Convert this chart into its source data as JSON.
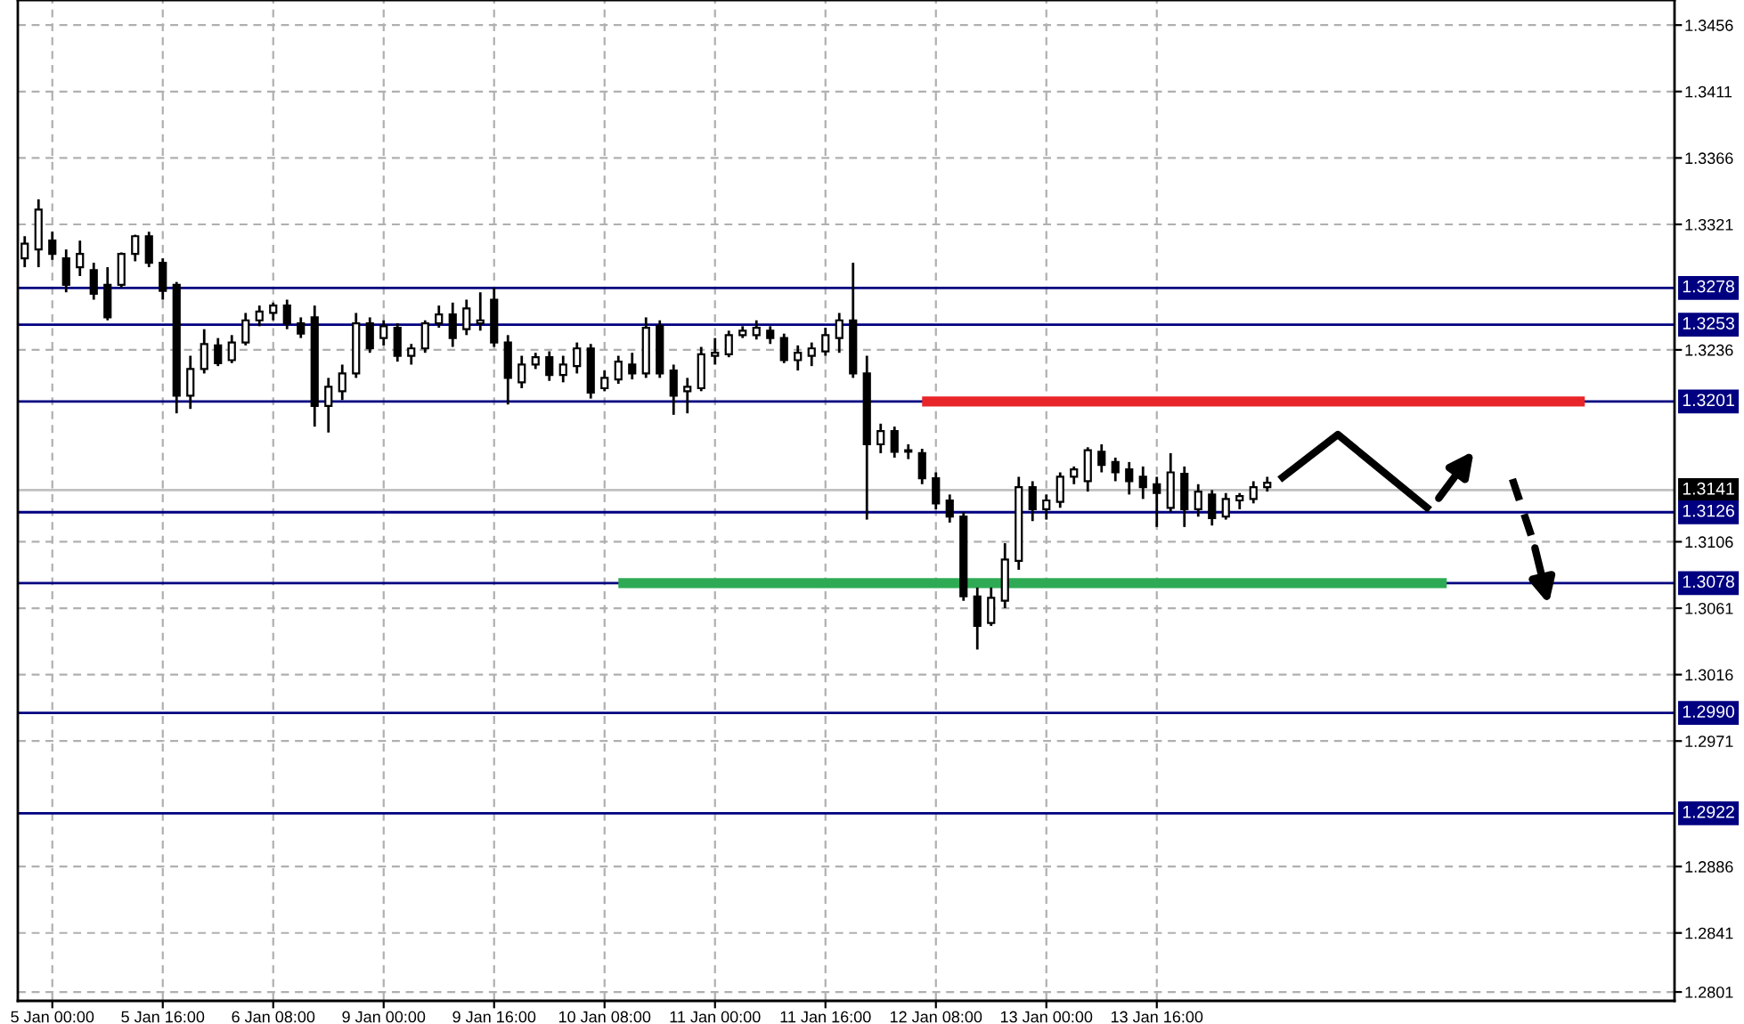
{
  "chart_data": {
    "type": "candlestick",
    "categories": [
      null,
      null,
      "5 Jan 00:00",
      null,
      null,
      null,
      null,
      null,
      null,
      null,
      "5 Jan 16:00",
      null,
      null,
      null,
      null,
      null,
      null,
      null,
      "6 Jan 08:00",
      null,
      null,
      null,
      null,
      null,
      null,
      null,
      "9 Jan 00:00",
      null,
      null,
      null,
      null,
      null,
      null,
      null,
      "9 Jan 16:00",
      null,
      null,
      null,
      null,
      null,
      null,
      null,
      "10 Jan 08:00",
      null,
      null,
      null,
      null,
      null,
      null,
      null,
      "11 Jan 00:00",
      null,
      null,
      null,
      null,
      null,
      null,
      null,
      "11 Jan 16:00",
      null,
      null,
      null,
      null,
      null,
      null,
      null,
      "12 Jan 08:00",
      null,
      null,
      null,
      null,
      null,
      null,
      null,
      "13 Jan 00:00",
      null,
      null,
      null,
      null,
      null,
      null,
      null,
      "13 Jan 16:00",
      null,
      null,
      null,
      null,
      null,
      null,
      null,
      null,
      null,
      null,
      null,
      null,
      null,
      null,
      null,
      null,
      null,
      null,
      null,
      null,
      null,
      null,
      null,
      null,
      null,
      null,
      null,
      null,
      null,
      null,
      null,
      null,
      null,
      null,
      null,
      null,
      null
    ],
    "ohlc": [
      [
        1.3298,
        1.3313,
        1.3292,
        1.3308
      ],
      [
        1.3304,
        1.3338,
        1.3292,
        1.3331
      ],
      [
        1.331,
        1.3316,
        1.3297,
        1.3301
      ],
      [
        1.3298,
        1.3304,
        1.3275,
        1.328
      ],
      [
        1.3292,
        1.331,
        1.3286,
        1.3301
      ],
      [
        1.329,
        1.3295,
        1.327,
        1.3274
      ],
      [
        1.328,
        1.3292,
        1.3256,
        1.3258
      ],
      [
        1.328,
        1.3302,
        1.3278,
        1.3301
      ],
      [
        1.3301,
        1.3314,
        1.3296,
        1.3313
      ],
      [
        1.3313,
        1.3316,
        1.3292,
        1.3295
      ],
      [
        1.3295,
        1.3298,
        1.327,
        1.3276
      ],
      [
        1.328,
        1.3282,
        1.3193,
        1.3205
      ],
      [
        1.3205,
        1.3232,
        1.3196,
        1.3223
      ],
      [
        1.3223,
        1.325,
        1.322,
        1.324
      ],
      [
        1.3239,
        1.3244,
        1.3225,
        1.3227
      ],
      [
        1.3229,
        1.3246,
        1.3227,
        1.3241
      ],
      [
        1.3241,
        1.3261,
        1.3239,
        1.3256
      ],
      [
        1.3256,
        1.3266,
        1.3252,
        1.3262
      ],
      [
        1.3261,
        1.3268,
        1.3256,
        1.3266
      ],
      [
        1.3266,
        1.327,
        1.325,
        1.3254
      ],
      [
        1.3254,
        1.3258,
        1.3244,
        1.3247
      ],
      [
        1.3258,
        1.3266,
        1.3184,
        1.3198
      ],
      [
        1.3198,
        1.3217,
        1.318,
        1.3211
      ],
      [
        1.3208,
        1.3226,
        1.3202,
        1.322
      ],
      [
        1.322,
        1.3261,
        1.3217,
        1.3254
      ],
      [
        1.3254,
        1.3258,
        1.3234,
        1.3237
      ],
      [
        1.3244,
        1.3256,
        1.3239,
        1.3252
      ],
      [
        1.3251,
        1.3254,
        1.3228,
        1.3232
      ],
      [
        1.3232,
        1.324,
        1.3226,
        1.3237
      ],
      [
        1.3237,
        1.3256,
        1.3234,
        1.3254
      ],
      [
        1.3254,
        1.3266,
        1.3251,
        1.326
      ],
      [
        1.326,
        1.3268,
        1.3238,
        1.3244
      ],
      [
        1.325,
        1.327,
        1.3246,
        1.3264
      ],
      [
        1.3254,
        1.3275,
        1.3249,
        1.3256
      ],
      [
        1.327,
        1.3278,
        1.3238,
        1.3241
      ],
      [
        1.3241,
        1.3246,
        1.3199,
        1.3217
      ],
      [
        1.3214,
        1.3232,
        1.321,
        1.3226
      ],
      [
        1.3226,
        1.3234,
        1.3223,
        1.3231
      ],
      [
        1.3231,
        1.3235,
        1.3215,
        1.3219
      ],
      [
        1.3219,
        1.3232,
        1.3214,
        1.3226
      ],
      [
        1.3225,
        1.3241,
        1.322,
        1.3237
      ],
      [
        1.3237,
        1.324,
        1.3203,
        1.3207
      ],
      [
        1.321,
        1.3222,
        1.3208,
        1.3217
      ],
      [
        1.3216,
        1.3232,
        1.3213,
        1.3228
      ],
      [
        1.3226,
        1.3234,
        1.3216,
        1.322
      ],
      [
        1.322,
        1.3258,
        1.3217,
        1.3251
      ],
      [
        1.3252,
        1.3256,
        1.3217,
        1.322
      ],
      [
        1.3222,
        1.3226,
        1.3192,
        1.3205
      ],
      [
        1.3208,
        1.3217,
        1.3193,
        1.3211
      ],
      [
        1.321,
        1.3238,
        1.3208,
        1.3233
      ],
      [
        1.3232,
        1.3244,
        1.3226,
        1.3234
      ],
      [
        1.3233,
        1.3249,
        1.3231,
        1.3246
      ],
      [
        1.3246,
        1.3252,
        1.3244,
        1.3249
      ],
      [
        1.3246,
        1.3256,
        1.3243,
        1.3251
      ],
      [
        1.3249,
        1.3252,
        1.324,
        1.3244
      ],
      [
        1.3244,
        1.3247,
        1.3227,
        1.3229
      ],
      [
        1.3229,
        1.3239,
        1.3222,
        1.3234
      ],
      [
        1.3232,
        1.3241,
        1.3225,
        1.3237
      ],
      [
        1.3235,
        1.3251,
        1.3232,
        1.3246
      ],
      [
        1.3244,
        1.3261,
        1.3234,
        1.3256
      ],
      [
        1.3256,
        1.3295,
        1.3217,
        1.322
      ],
      [
        1.322,
        1.3232,
        1.3121,
        1.3172
      ],
      [
        1.3172,
        1.3186,
        1.3166,
        1.3181
      ],
      [
        1.3181,
        1.3184,
        1.3163,
        1.3167
      ],
      [
        1.3167,
        1.3172,
        1.3162,
        1.3168
      ],
      [
        1.3166,
        1.3169,
        1.3145,
        1.3149
      ],
      [
        1.3149,
        1.3153,
        1.3128,
        1.3132
      ],
      [
        1.3134,
        1.3138,
        1.3119,
        1.3123
      ],
      [
        1.3123,
        1.3126,
        1.3066,
        1.3069
      ],
      [
        1.3069,
        1.3075,
        1.3033,
        1.3049
      ],
      [
        1.3051,
        1.3075,
        1.3049,
        1.3068
      ],
      [
        1.3066,
        1.3105,
        1.3061,
        1.3094
      ],
      [
        1.3093,
        1.315,
        1.3087,
        1.3143
      ],
      [
        1.3143,
        1.3147,
        1.312,
        1.3128
      ],
      [
        1.3128,
        1.3138,
        1.3121,
        1.3134
      ],
      [
        1.3133,
        1.3153,
        1.3129,
        1.315
      ],
      [
        1.315,
        1.3157,
        1.3145,
        1.3155
      ],
      [
        1.3147,
        1.317,
        1.314,
        1.3168
      ],
      [
        1.3167,
        1.3172,
        1.3153,
        1.3158
      ],
      [
        1.316,
        1.3163,
        1.3147,
        1.3153
      ],
      [
        1.3155,
        1.316,
        1.3138,
        1.3147
      ],
      [
        1.315,
        1.3157,
        1.3135,
        1.3143
      ],
      [
        1.3145,
        1.315,
        1.3116,
        1.3139
      ],
      [
        1.3129,
        1.3166,
        1.3126,
        1.3153
      ],
      [
        1.3152,
        1.3157,
        1.3116,
        1.3128
      ],
      [
        1.3128,
        1.3145,
        1.3123,
        1.314
      ],
      [
        1.3138,
        1.3141,
        1.3117,
        1.3122
      ],
      [
        1.3123,
        1.3139,
        1.3121,
        1.3135
      ],
      [
        1.3134,
        1.3139,
        1.3128,
        1.3137
      ],
      [
        1.3135,
        1.3147,
        1.3132,
        1.3143
      ],
      [
        1.3143,
        1.315,
        1.314,
        1.3146
      ],
      null,
      null,
      null,
      null,
      null,
      null,
      null,
      null,
      null,
      null,
      null,
      null,
      null,
      null,
      null,
      null,
      null,
      null,
      null,
      null,
      null,
      null,
      null,
      null,
      null,
      null,
      null,
      null,
      null
    ],
    "series": [
      {
        "type": "line",
        "color": "#e8262a",
        "values": [
          null,
          null,
          null,
          null,
          null,
          null,
          null,
          null,
          null,
          null,
          null,
          null,
          null,
          null,
          null,
          null,
          null,
          null,
          null,
          null,
          null,
          null,
          null,
          null,
          null,
          null,
          null,
          null,
          null,
          null,
          null,
          null,
          null,
          null,
          null,
          null,
          null,
          null,
          null,
          null,
          null,
          null,
          null,
          null,
          null,
          null,
          null,
          null,
          null,
          null,
          null,
          null,
          null,
          null,
          null,
          null,
          null,
          null,
          null,
          null,
          null,
          null,
          null,
          null,
          null,
          1.3201,
          1.3201,
          1.3201,
          1.3201,
          1.3201,
          1.3201,
          1.3201,
          1.3201,
          1.3201,
          1.3201,
          1.3201,
          1.3201,
          1.3201,
          1.3201,
          1.3201,
          1.3201,
          1.3201,
          1.3201,
          1.3201,
          1.3201,
          1.3201,
          1.3201,
          1.3201,
          1.3201,
          1.3201,
          1.3201,
          1.3201,
          1.3201,
          1.3201,
          1.3201,
          1.3201,
          1.3201,
          1.3201,
          1.3201,
          1.3201,
          1.3201,
          1.3201,
          1.3201,
          1.3201,
          1.3201,
          1.3201,
          1.3201,
          1.3201,
          1.3201,
          1.3201,
          1.3201,
          1.3201,
          1.3201,
          1.3201,
          null,
          null,
          null,
          null,
          null,
          null
        ]
      },
      {
        "type": "line",
        "color": "#2eaa55",
        "values": [
          null,
          null,
          null,
          null,
          null,
          null,
          null,
          null,
          null,
          null,
          null,
          null,
          null,
          null,
          null,
          null,
          null,
          null,
          null,
          null,
          null,
          null,
          null,
          null,
          null,
          null,
          null,
          null,
          null,
          null,
          null,
          null,
          null,
          null,
          null,
          null,
          null,
          null,
          null,
          null,
          null,
          null,
          null,
          1.3078,
          1.3078,
          1.3078,
          1.3078,
          1.3078,
          1.3078,
          1.3078,
          1.3078,
          1.3078,
          1.3078,
          1.3078,
          1.3078,
          1.3078,
          1.3078,
          1.3078,
          1.3078,
          1.3078,
          1.3078,
          1.3078,
          1.3078,
          1.3078,
          1.3078,
          1.3078,
          1.3078,
          1.3078,
          1.3078,
          1.3078,
          1.3078,
          1.3078,
          1.3078,
          1.3078,
          1.3078,
          1.3078,
          1.3078,
          1.3078,
          1.3078,
          1.3078,
          1.3078,
          1.3078,
          1.3078,
          1.3078,
          1.3078,
          1.3078,
          1.3078,
          1.3078,
          1.3078,
          1.3078,
          1.3078,
          1.3078,
          1.3078,
          1.3078,
          1.3078,
          1.3078,
          1.3078,
          1.3078,
          1.3078,
          1.3078,
          1.3078,
          1.3078,
          1.3078,
          1.3078,
          null,
          null,
          null,
          null,
          null,
          null,
          null,
          null,
          null,
          null,
          null,
          null,
          null,
          null,
          null,
          null
        ]
      }
    ],
    "ref_lines": [
      {
        "axis": "y",
        "value": 1.3278,
        "label": "1.3278",
        "color": "#000080"
      },
      {
        "axis": "y",
        "value": 1.3253,
        "label": "1.3253",
        "color": "#000080"
      },
      {
        "axis": "y",
        "value": 1.3201,
        "label": "1.3201",
        "color": "#000080"
      },
      {
        "axis": "y",
        "value": 1.3141,
        "label": "1.3141",
        "color": "#c0c0c0"
      },
      {
        "axis": "y",
        "value": 1.3126,
        "label": "1.3126",
        "color": "#000080"
      },
      {
        "axis": "y",
        "value": 1.3078,
        "label": "1.3078",
        "color": "#000080"
      },
      {
        "axis": "y",
        "value": 1.299,
        "label": "1.2990",
        "color": "#000080"
      },
      {
        "axis": "y",
        "value": 1.2922,
        "label": "1.2922",
        "color": "#000080"
      }
    ],
    "ylim": [
      1.2795,
      1.3473
    ],
    "yticks": [
      1.3456,
      1.3411,
      1.3366,
      1.3321,
      1.3236,
      1.3106,
      1.3061,
      1.3016,
      1.2971,
      1.2886,
      1.2841,
      1.2801
    ],
    "grid": true
  }
}
